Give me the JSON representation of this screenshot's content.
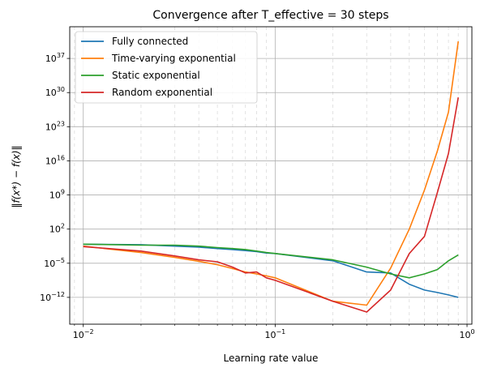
{
  "chart_data": {
    "type": "line",
    "title": "Convergence after T_effective = 30 steps",
    "xlabel": "Learning rate value",
    "ylabel": "‖f(x*) − f(x)‖",
    "xscale": "log",
    "yscale": "log",
    "xlim": [
      0.0085,
      1.06
    ],
    "ylim_exponent": [
      -17.5,
      43.5
    ],
    "grid": "major solid, minor dashed on x",
    "legend_position": "upper-left",
    "x_ticks": [
      {
        "value": 0.01,
        "base": "10",
        "exp": "−2"
      },
      {
        "value": 0.1,
        "base": "10",
        "exp": "−1"
      },
      {
        "value": 1,
        "base": "10",
        "exp": "0"
      }
    ],
    "y_ticks": [
      {
        "exp_value": -12,
        "base": "10",
        "exp": "−12"
      },
      {
        "exp_value": -5,
        "base": "10",
        "exp": "−5"
      },
      {
        "exp_value": 2,
        "base": "10",
        "exp": "2"
      },
      {
        "exp_value": 9,
        "base": "10",
        "exp": "9"
      },
      {
        "exp_value": 16,
        "base": "10",
        "exp": "16"
      },
      {
        "exp_value": 23,
        "base": "10",
        "exp": "23"
      },
      {
        "exp_value": 30,
        "base": "10",
        "exp": "30"
      },
      {
        "exp_value": 37,
        "base": "10",
        "exp": "37"
      }
    ],
    "x": [
      0.01,
      0.02,
      0.03,
      0.04,
      0.05,
      0.06,
      0.07,
      0.08,
      0.09,
      0.1,
      0.2,
      0.3,
      0.4,
      0.5,
      0.6,
      0.7,
      0.8,
      0.9
    ],
    "series": [
      {
        "name": "Fully connected",
        "color": "#1f77b4",
        "log10_values": [
          -1.1,
          -1.2,
          -1.5,
          -1.7,
          -2.0,
          -2.2,
          -2.4,
          -2.6,
          -2.9,
          -3.0,
          -4.5,
          -6.8,
          -7.0,
          -9.3,
          -10.5,
          -11.0,
          -11.5,
          -12.0
        ]
      },
      {
        "name": "Time-varying exponential",
        "color": "#ff7f0e",
        "log10_values": [
          -1.5,
          -2.8,
          -3.8,
          -4.6,
          -5.3,
          -6.1,
          -6.8,
          -7.2,
          -7.6,
          -8.0,
          -12.8,
          -13.6,
          -6.0,
          2.0,
          10.0,
          18.0,
          26.0,
          40.5
        ]
      },
      {
        "name": "Static exponential",
        "color": "#2ca02c",
        "log10_values": [
          -1.1,
          -1.3,
          -1.3,
          -1.5,
          -1.8,
          -2.0,
          -2.2,
          -2.5,
          -2.8,
          -3.0,
          -4.3,
          -5.8,
          -7.2,
          -8.0,
          -7.2,
          -6.3,
          -4.5,
          -3.3
        ]
      },
      {
        "name": "Random exponential",
        "color": "#d62728",
        "log10_values": [
          -1.6,
          -2.5,
          -3.5,
          -4.3,
          -4.7,
          -5.8,
          -7.0,
          -6.8,
          -8.0,
          -8.5,
          -12.8,
          -15.0,
          -10.5,
          -3.0,
          0.5,
          9.5,
          17.5,
          29.0
        ]
      }
    ]
  }
}
